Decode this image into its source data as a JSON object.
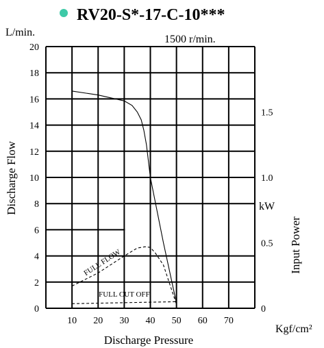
{
  "title": "RV20-S*-17-C-10***",
  "bullet_color": "#3ec9a7",
  "speed_label": "1500 r/min.",
  "chart_data": {
    "type": "line",
    "xlabel": "Discharge Pressure",
    "x_unit": "Kgf/cm²",
    "xlim": [
      0,
      80
    ],
    "x_ticks": [
      10,
      20,
      30,
      40,
      50,
      60,
      70
    ],
    "ylabel": "Discharge Flow",
    "y_unit": "L/min.",
    "ylim": [
      0,
      20
    ],
    "y_ticks": [
      0,
      2,
      4,
      6,
      8,
      10,
      12,
      14,
      16,
      18,
      20
    ],
    "y2label": "Input Power",
    "y2_unit": "kW",
    "y2lim": [
      0,
      2
    ],
    "y2_ticks": [
      0,
      0.5,
      1.0,
      1.5
    ],
    "y2_tick_labels": [
      "0",
      "0.5",
      "1.0",
      "1.5"
    ],
    "grid": true,
    "series": [
      {
        "name": "",
        "axis": "flow",
        "style": "solid",
        "x": [
          10,
          20,
          30,
          33,
          35,
          36.5,
          37.5,
          38.5,
          40,
          45,
          50
        ],
        "y": [
          16.6,
          16.3,
          15.85,
          15.5,
          15.0,
          14.4,
          13.6,
          12.5,
          10.0,
          5.0,
          0.4
        ]
      },
      {
        "name": "FULL FLOW",
        "axis": "power",
        "style": "dashed",
        "x": [
          10,
          20,
          30,
          35,
          38,
          40,
          42,
          45,
          48,
          50
        ],
        "y": [
          0.17,
          0.27,
          0.4,
          0.46,
          0.47,
          0.465,
          0.42,
          0.33,
          0.15,
          0.03
        ]
      },
      {
        "name": "FULL CUT OFF",
        "axis": "power",
        "style": "dashed",
        "x": [
          10,
          50
        ],
        "y": [
          0.035,
          0.05
        ]
      }
    ]
  }
}
